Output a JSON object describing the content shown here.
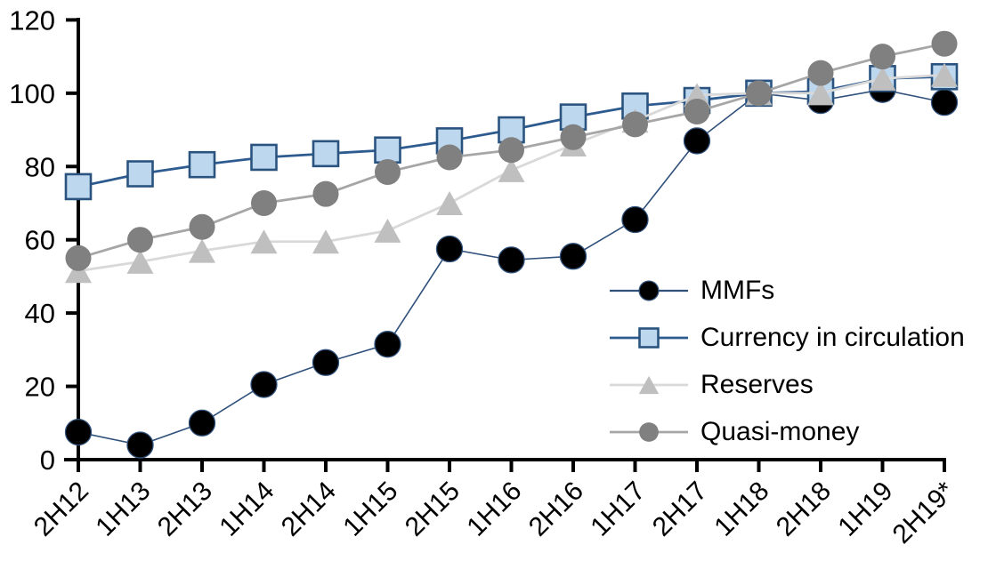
{
  "chart_data": {
    "type": "line",
    "title": "",
    "xlabel": "",
    "ylabel": "",
    "categories": [
      "2H12",
      "1H13",
      "2H13",
      "1H14",
      "2H14",
      "1H15",
      "2H15",
      "1H16",
      "2H16",
      "1H17",
      "2H17",
      "1H18",
      "2H18",
      "1H19",
      "2H19*"
    ],
    "series": [
      {
        "name": "MMFs",
        "marker": "circle",
        "values": [
          7.5,
          4,
          10,
          20.5,
          26.5,
          31.5,
          57.5,
          54.5,
          55.5,
          65.5,
          87,
          100,
          98,
          101,
          97.5
        ],
        "line_color": "#30517c",
        "line_width": 1.6,
        "marker_fill": "#000000",
        "marker_stroke": "#30517c",
        "marker_stroke_width": 1.3,
        "marker_size": 29
      },
      {
        "name": "Currency in circulation",
        "marker": "square",
        "values": [
          74.5,
          78,
          80.5,
          82.5,
          83.5,
          84.5,
          87,
          90,
          93.5,
          96.5,
          98,
          100,
          100.5,
          104,
          104.5
        ],
        "line_color": "#2e5b8f",
        "line_width": 2.8,
        "marker_fill": "#bdd7ee",
        "marker_stroke": "#2a547f",
        "marker_stroke_width": 2.6,
        "marker_size": 28
      },
      {
        "name": "Reserves",
        "marker": "triangle",
        "values": [
          51.5,
          54,
          57,
          59.5,
          59.5,
          62.5,
          70,
          79,
          86,
          92.5,
          99.5,
          100,
          100,
          104,
          105
        ],
        "line_color": "#d9d9d9",
        "line_width": 2.8,
        "marker_fill": "#bfbfbf",
        "marker_stroke": "#bfbfbf",
        "marker_stroke_width": 0,
        "marker_size": 30
      },
      {
        "name": "Quasi-money",
        "marker": "circle",
        "values": [
          55,
          60,
          63.5,
          70,
          72.5,
          78.5,
          82.5,
          84.5,
          88,
          91.5,
          95,
          100,
          105.5,
          110,
          113.5
        ],
        "line_color": "#a6a6a6",
        "line_width": 2.8,
        "marker_fill": "#808080",
        "marker_stroke": "#808080",
        "marker_stroke_width": 0,
        "marker_size": 29
      }
    ],
    "ylim": [
      0,
      120
    ],
    "y_tick_step": 20,
    "y_tick_labels": [
      "0",
      "20",
      "40",
      "60",
      "80",
      "100",
      "120"
    ],
    "x_tick_rotation_deg": -45,
    "grid": "off",
    "legend_position": "inside-right",
    "axis_color": "#000000"
  }
}
